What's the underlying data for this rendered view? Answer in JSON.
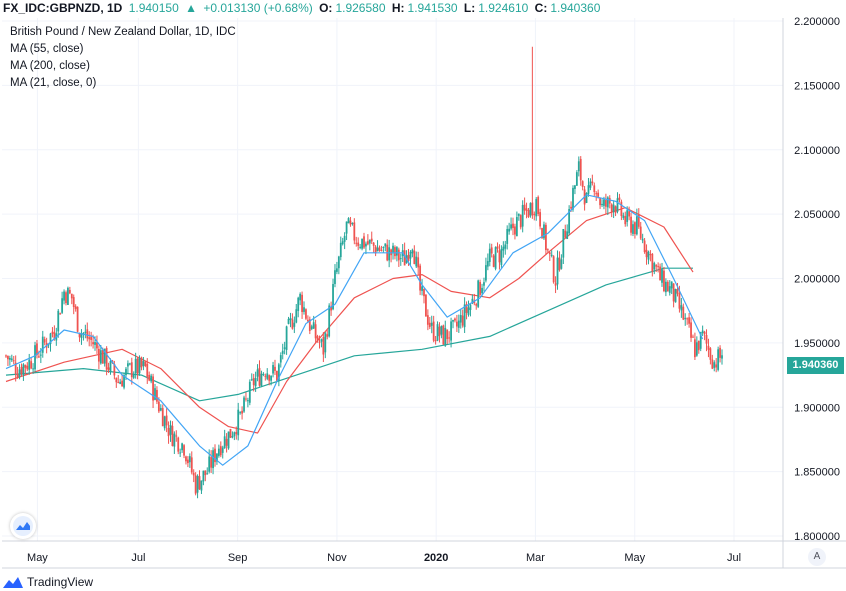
{
  "header": {
    "symbol": "FX_IDC:GBPNZD, 1D",
    "last": "1.940150",
    "change_arrow": "▲",
    "change": "+0.013130 (+0.68%)",
    "o_label": "O:",
    "o_value": "1.926580",
    "h_label": "H:",
    "h_value": "1.941530",
    "l_label": "L:",
    "l_value": "1.924610",
    "c_label": "C:",
    "c_value": "1.940360"
  },
  "legend": {
    "title": "British Pound / New Zealand Dollar, 1D, IDC",
    "ma1": "MA (55, close)",
    "ma2": "MA (200, close)",
    "ma3": "MA (21, close, 0)"
  },
  "price_tag": "1.940360",
  "auto_label": "A",
  "brand": "TradingView",
  "colors": {
    "up": "#26a69a",
    "down": "#ef5350",
    "ma55": "#ef5350",
    "ma200": "#26a69a",
    "ma21": "#42a5f5"
  },
  "icons": {
    "logo": "tradingview-logo-icon",
    "float": "cloud-chart-icon"
  },
  "chart_data": {
    "type": "candlestick",
    "title": "British Pound / New Zealand Dollar, 1D, IDC",
    "x_tick_labels": [
      "May",
      "Jul",
      "Sep",
      "Nov",
      "2020",
      "Mar",
      "May",
      "Jul"
    ],
    "y_tick_labels": [
      "1.800000",
      "1.850000",
      "1.900000",
      "1.950000",
      "2.000000",
      "2.050000",
      "2.100000",
      "2.150000",
      "2.200000"
    ],
    "ylim": [
      1.8,
      2.2
    ],
    "grid": true,
    "last_close": 1.94036,
    "price_anchors": [
      {
        "t": 0,
        "p": 1.94
      },
      {
        "t": 6,
        "p": 1.93
      },
      {
        "t": 12,
        "p": 1.935
      },
      {
        "t": 18,
        "p": 1.945
      },
      {
        "t": 25,
        "p": 1.96
      },
      {
        "t": 30,
        "p": 1.99
      },
      {
        "t": 34,
        "p": 1.985
      },
      {
        "t": 38,
        "p": 1.96
      },
      {
        "t": 45,
        "p": 1.95
      },
      {
        "t": 52,
        "p": 1.935
      },
      {
        "t": 58,
        "p": 1.92
      },
      {
        "t": 65,
        "p": 1.93
      },
      {
        "t": 72,
        "p": 1.93
      },
      {
        "t": 78,
        "p": 1.905
      },
      {
        "t": 85,
        "p": 1.88
      },
      {
        "t": 92,
        "p": 1.87
      },
      {
        "t": 98,
        "p": 1.84
      },
      {
        "t": 104,
        "p": 1.85
      },
      {
        "t": 110,
        "p": 1.87
      },
      {
        "t": 116,
        "p": 1.88
      },
      {
        "t": 122,
        "p": 1.895
      },
      {
        "t": 128,
        "p": 1.92
      },
      {
        "t": 134,
        "p": 1.93
      },
      {
        "t": 140,
        "p": 1.925
      },
      {
        "t": 146,
        "p": 1.96
      },
      {
        "t": 152,
        "p": 1.985
      },
      {
        "t": 158,
        "p": 1.96
      },
      {
        "t": 164,
        "p": 1.945
      },
      {
        "t": 170,
        "p": 2.0
      },
      {
        "t": 176,
        "p": 2.04
      },
      {
        "t": 182,
        "p": 2.03
      },
      {
        "t": 190,
        "p": 2.025
      },
      {
        "t": 198,
        "p": 2.02
      },
      {
        "t": 206,
        "p": 2.015
      },
      {
        "t": 210,
        "p": 2.03
      },
      {
        "t": 214,
        "p": 1.99
      },
      {
        "t": 220,
        "p": 1.96
      },
      {
        "t": 226,
        "p": 1.955
      },
      {
        "t": 232,
        "p": 1.96
      },
      {
        "t": 238,
        "p": 1.975
      },
      {
        "t": 244,
        "p": 1.99
      },
      {
        "t": 250,
        "p": 2.015
      },
      {
        "t": 256,
        "p": 2.02
      },
      {
        "t": 262,
        "p": 2.04
      },
      {
        "t": 268,
        "p": 2.05
      },
      {
        "t": 274,
        "p": 2.06
      },
      {
        "t": 280,
        "p": 2.02
      },
      {
        "t": 284,
        "p": 2.0
      },
      {
        "t": 288,
        "p": 2.03
      },
      {
        "t": 292,
        "p": 2.06
      },
      {
        "t": 296,
        "p": 2.085
      },
      {
        "t": 300,
        "p": 2.06
      },
      {
        "t": 304,
        "p": 2.075
      },
      {
        "t": 308,
        "p": 2.055
      },
      {
        "t": 314,
        "p": 2.06
      },
      {
        "t": 320,
        "p": 2.045
      },
      {
        "t": 326,
        "p": 2.04
      },
      {
        "t": 332,
        "p": 2.02
      },
      {
        "t": 338,
        "p": 2.0
      },
      {
        "t": 344,
        "p": 1.99
      },
      {
        "t": 350,
        "p": 1.97
      },
      {
        "t": 356,
        "p": 1.945
      },
      {
        "t": 360,
        "p": 1.955
      },
      {
        "t": 366,
        "p": 1.935
      },
      {
        "t": 370,
        "p": 1.94
      }
    ],
    "spikes": [
      {
        "t": 272,
        "high": 2.18
      }
    ],
    "ma55_points": [
      {
        "t": 0,
        "p": 1.92
      },
      {
        "t": 30,
        "p": 1.935
      },
      {
        "t": 60,
        "p": 1.945
      },
      {
        "t": 80,
        "p": 1.93
      },
      {
        "t": 100,
        "p": 1.9
      },
      {
        "t": 115,
        "p": 1.885
      },
      {
        "t": 130,
        "p": 1.88
      },
      {
        "t": 145,
        "p": 1.92
      },
      {
        "t": 160,
        "p": 1.95
      },
      {
        "t": 180,
        "p": 1.985
      },
      {
        "t": 200,
        "p": 2.0
      },
      {
        "t": 215,
        "p": 2.003
      },
      {
        "t": 230,
        "p": 1.99
      },
      {
        "t": 250,
        "p": 1.985
      },
      {
        "t": 265,
        "p": 2.0
      },
      {
        "t": 280,
        "p": 2.02
      },
      {
        "t": 300,
        "p": 2.045
      },
      {
        "t": 320,
        "p": 2.055
      },
      {
        "t": 340,
        "p": 2.04
      },
      {
        "t": 355,
        "p": 2.005
      }
    ],
    "ma200_points": [
      {
        "t": 0,
        "p": 1.925
      },
      {
        "t": 40,
        "p": 1.93
      },
      {
        "t": 70,
        "p": 1.925
      },
      {
        "t": 100,
        "p": 1.905
      },
      {
        "t": 120,
        "p": 1.91
      },
      {
        "t": 150,
        "p": 1.925
      },
      {
        "t": 180,
        "p": 1.94
      },
      {
        "t": 215,
        "p": 1.945
      },
      {
        "t": 250,
        "p": 1.955
      },
      {
        "t": 280,
        "p": 1.975
      },
      {
        "t": 310,
        "p": 1.995
      },
      {
        "t": 340,
        "p": 2.008
      },
      {
        "t": 355,
        "p": 2.008
      }
    ],
    "ma21_points": [
      {
        "t": 0,
        "p": 1.93
      },
      {
        "t": 15,
        "p": 1.94
      },
      {
        "t": 30,
        "p": 1.96
      },
      {
        "t": 45,
        "p": 1.955
      },
      {
        "t": 60,
        "p": 1.925
      },
      {
        "t": 80,
        "p": 1.905
      },
      {
        "t": 100,
        "p": 1.87
      },
      {
        "t": 112,
        "p": 1.855
      },
      {
        "t": 125,
        "p": 1.87
      },
      {
        "t": 140,
        "p": 1.92
      },
      {
        "t": 155,
        "p": 1.965
      },
      {
        "t": 170,
        "p": 1.98
      },
      {
        "t": 185,
        "p": 2.02
      },
      {
        "t": 205,
        "p": 2.02
      },
      {
        "t": 215,
        "p": 1.995
      },
      {
        "t": 228,
        "p": 1.97
      },
      {
        "t": 245,
        "p": 1.985
      },
      {
        "t": 262,
        "p": 2.02
      },
      {
        "t": 280,
        "p": 2.035
      },
      {
        "t": 300,
        "p": 2.065
      },
      {
        "t": 315,
        "p": 2.06
      },
      {
        "t": 330,
        "p": 2.045
      },
      {
        "t": 345,
        "p": 2.0
      },
      {
        "t": 360,
        "p": 1.953
      }
    ]
  }
}
